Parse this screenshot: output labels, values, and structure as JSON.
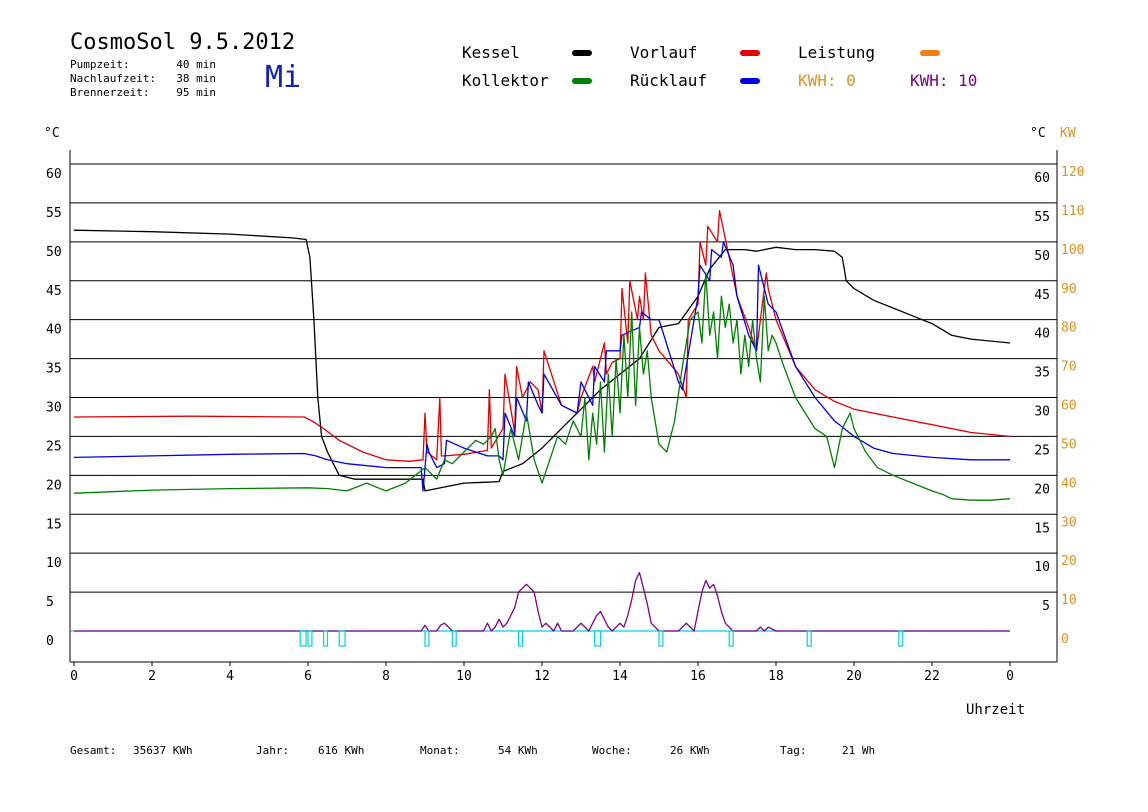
{
  "header": {
    "title": "CosmoSol 9.5.2012",
    "weekday": "Mi",
    "info": [
      {
        "label": "Pumpzeit:",
        "value": "40 min"
      },
      {
        "label": "Nachlaufzeit:",
        "value": "38 min"
      },
      {
        "label": "Brennerzeit:",
        "value": "95 min"
      }
    ]
  },
  "legend": {
    "kessel": {
      "label": "Kessel",
      "color": "#000000"
    },
    "kollektor": {
      "label": "Kollektor",
      "color": "#008000"
    },
    "vorlauf": {
      "label": "Vorlauf",
      "color": "#e00000"
    },
    "ruecklauf": {
      "label": "Rücklauf",
      "color": "#0000e0"
    },
    "leistung": {
      "label": "Leistung",
      "color": "#f08010"
    },
    "kwh_a": {
      "label": "KWH: 0",
      "color": "#e09020"
    },
    "kwh_b": {
      "label": "KWH: 10",
      "color": "#800080"
    }
  },
  "footer": [
    {
      "label": "Gesamt:",
      "value": "35637 KWh"
    },
    {
      "label": "Jahr:",
      "value": "616 KWh"
    },
    {
      "label": "Monat:",
      "value": "54 KWh"
    },
    {
      "label": "Woche:",
      "value": "26 KWh"
    },
    {
      "label": "Tag:",
      "value": "21 Wh"
    }
  ],
  "chart_data": {
    "type": "line",
    "xlabel": "Uhrzeit",
    "ylabel_left": "°C",
    "ylabel_right": [
      "°C",
      "KW"
    ],
    "xlim": [
      0,
      24
    ],
    "ylim": [
      -5,
      65
    ],
    "x_ticks": [
      "0",
      "2",
      "4",
      "6",
      "8",
      "10",
      "12",
      "14",
      "16",
      "18",
      "20",
      "22",
      "0"
    ],
    "y_ticks_left": [
      0,
      5,
      10,
      15,
      20,
      25,
      30,
      35,
      40,
      45,
      50,
      55,
      60
    ],
    "y_ticks_right_temp": [
      5,
      10,
      15,
      20,
      25,
      30,
      35,
      40,
      45,
      50,
      55,
      60
    ],
    "y_ticks_right_kw": [
      0,
      10,
      20,
      30,
      40,
      50,
      60,
      70,
      80,
      90,
      100,
      110,
      120
    ],
    "grid": "horizontal",
    "series": [
      {
        "name": "Kessel",
        "color": "#000000",
        "x": [
          0,
          2,
          4,
          5.6,
          5.95,
          6.05,
          6.15,
          6.25,
          6.35,
          6.5,
          6.8,
          7.2,
          8,
          8.95,
          9.0,
          9.5,
          10,
          10.5,
          10.9,
          11,
          11.5,
          12,
          12.5,
          13,
          13.5,
          14,
          14.5,
          15,
          15.5,
          16,
          16.3,
          16.7,
          17.2,
          17.5,
          17.7,
          18,
          18.5,
          19,
          19.5,
          19.7,
          19.8,
          20,
          20.5,
          21,
          21.5,
          22,
          22.5,
          23,
          24
        ],
        "y": [
          51.5,
          51.3,
          51,
          50.5,
          50.3,
          48,
          40,
          30,
          25,
          23,
          20,
          19.5,
          19.5,
          19.5,
          18,
          18.5,
          19,
          19.1,
          19.2,
          20.5,
          21.5,
          23.5,
          26,
          28.5,
          31,
          33,
          35,
          39,
          39.5,
          43,
          46.5,
          49,
          49,
          48.8,
          49,
          49.3,
          49,
          49,
          48.8,
          48,
          45,
          44,
          42.5,
          41.5,
          40.5,
          39.5,
          38,
          37.5,
          37
        ]
      },
      {
        "name": "Vorlauf",
        "color": "#e00000",
        "x": [
          0,
          3,
          5.9,
          6.1,
          6.4,
          6.8,
          7.4,
          8,
          8.6,
          8.95,
          9.0,
          9.05,
          9.3,
          9.38,
          9.42,
          9.5,
          10,
          10.6,
          10.65,
          10.7,
          11,
          11.05,
          11.3,
          11.35,
          11.5,
          11.7,
          11.9,
          12,
          12.05,
          12.5,
          12.9,
          13.0,
          13.3,
          13.35,
          13.6,
          13.65,
          13.8,
          14,
          14.05,
          14.2,
          14.25,
          14.45,
          14.5,
          14.6,
          14.65,
          14.8,
          15,
          15.5,
          15.7,
          15.75,
          16,
          16.05,
          16.2,
          16.25,
          16.5,
          16.55,
          16.8,
          17,
          17.3,
          17.5,
          17.75,
          17.8,
          18,
          18.5,
          19,
          19.5,
          20,
          21,
          22,
          23,
          24
        ],
        "y": [
          27.5,
          27.6,
          27.5,
          27,
          26,
          24.5,
          23,
          22,
          21.8,
          22,
          28,
          23,
          22,
          30,
          22.5,
          22.5,
          22.7,
          23.2,
          31,
          23.5,
          26,
          33,
          25.5,
          34,
          30,
          32,
          31,
          28,
          36,
          29,
          28,
          30,
          34,
          32,
          37,
          33,
          34.5,
          35,
          44,
          37,
          45,
          40,
          43,
          40,
          46,
          38,
          36,
          33,
          30,
          40,
          42,
          50,
          47,
          52,
          50,
          54,
          48,
          43,
          39,
          36,
          46,
          44,
          40,
          34,
          31,
          29.5,
          28.5,
          27.5,
          26.5,
          25.5,
          25
        ]
      },
      {
        "name": "Rücklauf",
        "color": "#0000e0",
        "x": [
          0,
          2,
          4,
          5.9,
          6.2,
          6.5,
          7,
          8,
          8.9,
          8.95,
          9.05,
          9.1,
          9.3,
          9.5,
          9.55,
          10,
          10.6,
          10.9,
          11,
          11.05,
          11.3,
          11.35,
          11.6,
          11.65,
          11.9,
          12,
          12.05,
          12.5,
          12.9,
          13.0,
          13.3,
          13.35,
          13.6,
          13.65,
          14,
          14.05,
          14.5,
          14.55,
          14.8,
          15,
          15.5,
          15.6,
          16,
          16.05,
          16.3,
          16.35,
          16.6,
          16.65,
          16.9,
          17,
          17.3,
          17.5,
          17.55,
          17.8,
          18,
          18.5,
          19,
          19.5,
          20,
          20.5,
          21,
          22,
          23,
          24
        ],
        "y": [
          22.3,
          22.5,
          22.7,
          22.8,
          22.5,
          22,
          21.5,
          21,
          21,
          18,
          24,
          23,
          21,
          21.5,
          24.5,
          23.5,
          22.5,
          22.5,
          22,
          28,
          25,
          30,
          27,
          32,
          29,
          28,
          33,
          29,
          28,
          32,
          29,
          34,
          32,
          36,
          36,
          38,
          39,
          41,
          40,
          40,
          32,
          31,
          43,
          47,
          45,
          49,
          48,
          50,
          47,
          43,
          38,
          36,
          47,
          42,
          41,
          34,
          30,
          27,
          25,
          23.5,
          22.8,
          22.3,
          22,
          22
        ]
      },
      {
        "name": "Kollektor",
        "color": "#008000",
        "x": [
          0,
          2,
          4,
          6,
          6.5,
          7,
          7.5,
          8,
          8.5,
          9,
          9.3,
          9.5,
          9.7,
          10,
          10.3,
          10.5,
          10.7,
          10.8,
          10.9,
          11,
          11.2,
          11.4,
          11.5,
          11.6,
          11.8,
          12,
          12.2,
          12.4,
          12.6,
          12.8,
          13,
          13.1,
          13.2,
          13.3,
          13.4,
          13.5,
          13.6,
          13.7,
          13.8,
          13.9,
          14,
          14.1,
          14.2,
          14.3,
          14.4,
          14.5,
          14.6,
          14.7,
          14.8,
          14.9,
          15,
          15.2,
          15.4,
          15.6,
          15.8,
          16,
          16.1,
          16.2,
          16.3,
          16.4,
          16.5,
          16.6,
          16.7,
          16.8,
          16.9,
          17,
          17.1,
          17.2,
          17.3,
          17.4,
          17.5,
          17.6,
          17.7,
          17.8,
          17.9,
          18,
          18.2,
          18.5,
          19,
          19.3,
          19.5,
          19.7,
          19.9,
          20,
          20.3,
          20.6,
          21,
          21.5,
          22,
          22.3,
          22.5,
          23,
          23.5,
          24
        ],
        "y": [
          17.7,
          18.1,
          18.3,
          18.4,
          18.3,
          18,
          19,
          18,
          19,
          21,
          19.5,
          22,
          21.5,
          23,
          24.5,
          24,
          25,
          26,
          22,
          20,
          26,
          22,
          25,
          28,
          22,
          19,
          22,
          25,
          24,
          27,
          25,
          30,
          22,
          28,
          24,
          32,
          23,
          33,
          25,
          35,
          28,
          38,
          30,
          41,
          29,
          39,
          33,
          36,
          30,
          27,
          24,
          23,
          27,
          34,
          40,
          41,
          37,
          46,
          38,
          41,
          35,
          43,
          39,
          42,
          37,
          40,
          33,
          38,
          34,
          40,
          35,
          32,
          43,
          36,
          38,
          37,
          34,
          30,
          26,
          25,
          21,
          26,
          28,
          26,
          23,
          21,
          20,
          19,
          18,
          17.5,
          17,
          16.8,
          16.8,
          17
        ]
      },
      {
        "name": "Leistung",
        "color": "#800080",
        "unit": "KW",
        "x": [
          0,
          8.9,
          9.0,
          9.1,
          9.15,
          9.3,
          9.4,
          9.5,
          9.6,
          9.7,
          10.5,
          10.6,
          10.7,
          10.8,
          10.9,
          11.0,
          11.1,
          11.2,
          11.3,
          11.4,
          11.5,
          11.6,
          11.7,
          11.8,
          11.9,
          12.0,
          12.1,
          12.2,
          12.3,
          12.4,
          12.5,
          12.6,
          12.7,
          12.8,
          12.9,
          13.0,
          13.1,
          13.2,
          13.3,
          13.4,
          13.5,
          13.6,
          13.7,
          13.8,
          13.9,
          14.0,
          14.1,
          14.2,
          14.3,
          14.4,
          14.5,
          14.6,
          14.7,
          14.8,
          14.9,
          15.0,
          15.5,
          15.6,
          15.7,
          15.8,
          15.9,
          16.0,
          16.1,
          16.2,
          16.3,
          16.4,
          16.5,
          16.6,
          16.7,
          16.8,
          16.9,
          17.0,
          17.5,
          17.6,
          17.7,
          17.8,
          18,
          24
        ],
        "y": [
          0,
          0,
          1.5,
          0,
          0,
          0,
          1.5,
          2,
          1,
          0,
          0,
          2,
          0,
          1,
          3,
          1,
          2,
          4,
          6,
          10,
          11,
          12,
          11,
          10,
          5,
          1,
          2,
          1,
          0,
          2,
          0,
          0,
          0,
          0,
          1,
          2,
          1,
          0,
          2,
          4,
          5,
          3,
          1,
          0,
          1,
          2,
          1,
          4,
          8,
          13,
          15,
          11,
          7,
          2,
          1,
          0,
          0,
          1,
          2,
          1,
          0,
          5,
          10,
          13,
          11,
          12,
          9,
          5,
          2,
          1,
          0,
          0,
          0,
          1,
          0,
          1,
          0,
          0
        ]
      },
      {
        "name": "Pumpe",
        "color": "#00d0e0",
        "x": [
          5.8,
          5.95,
          6.0,
          6.1,
          6.4,
          6.5,
          6.8,
          6.95,
          9.0,
          9.1,
          9.7,
          9.8,
          11.4,
          11.5,
          13.35,
          13.5,
          15.0,
          15.1,
          16.8,
          16.9,
          18.8,
          18.9,
          21.15,
          21.25
        ],
        "y": [
          0,
          0,
          0,
          0,
          0,
          0,
          0,
          0,
          0,
          0,
          0,
          0,
          0,
          0,
          0,
          0,
          0,
          0,
          0,
          0,
          0,
          0,
          0,
          0
        ]
      }
    ]
  }
}
